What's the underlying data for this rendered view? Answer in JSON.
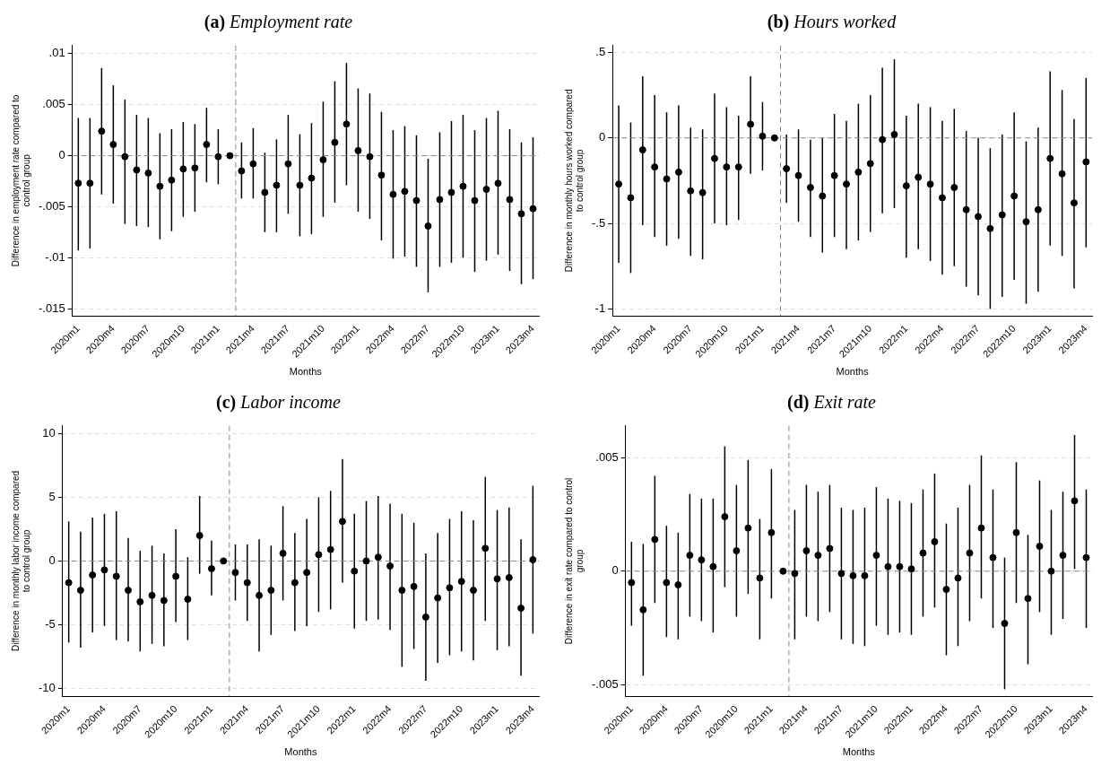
{
  "chart_data": [
    {
      "type": "scatter",
      "title": "(a) Employment rate",
      "xlabel": "Months",
      "ylabel": "Difference in employment rate compared to control group",
      "x": [
        "2020-01",
        "2020-02",
        "2020-03",
        "2020-04",
        "2020-05",
        "2020-06",
        "2020-07",
        "2020-08",
        "2020-09",
        "2020-10",
        "2020-11",
        "2020-12",
        "2021-01",
        "2021-02",
        "2021-03",
        "2021-04",
        "2021-05",
        "2021-06",
        "2021-07",
        "2021-08",
        "2021-09",
        "2021-10",
        "2021-11",
        "2021-12",
        "2022-01",
        "2022-02",
        "2022-03",
        "2022-04",
        "2022-05",
        "2022-06",
        "2022-07",
        "2022-08",
        "2022-09",
        "2022-10",
        "2022-11",
        "2022-12",
        "2023-01",
        "2023-02",
        "2023-03",
        "2023-04"
      ],
      "series": [
        {
          "color": "#000000",
          "values": [
            -0.0027,
            -0.0027,
            0.0024,
            0.0011,
            -0.0001,
            -0.0014,
            -0.0017,
            -0.003,
            -0.0024,
            -0.0013,
            -0.0012,
            0.0011,
            -0.0001,
            0,
            -0.0015,
            -0.0008,
            -0.0036,
            -0.0029,
            -0.0008,
            -0.0029,
            -0.0022,
            -0.0004,
            0.0013,
            0.0031,
            0.0005,
            -0.0001,
            -0.0019,
            -0.0038,
            -0.0035,
            -0.0044,
            -0.0069,
            -0.0043,
            -0.0036,
            -0.003,
            -0.0044,
            -0.0033,
            -0.0027,
            -0.0043,
            -0.0057,
            -0.0052
          ],
          "errors": [
            [
              -0.0093,
              0.0037
            ],
            [
              -0.0091,
              0.0037
            ],
            [
              -0.0038,
              0.0086
            ],
            [
              -0.0047,
              0.0069
            ],
            [
              -0.0067,
              0.0055
            ],
            [
              -0.0069,
              0.004
            ],
            [
              -0.007,
              0.0037
            ],
            [
              -0.0082,
              0.0022
            ],
            [
              -0.0074,
              0.0026
            ],
            [
              -0.006,
              0.0033
            ],
            [
              -0.0055,
              0.0031
            ],
            [
              -0.0026,
              0.0047
            ],
            [
              -0.0028,
              0.0026
            ],
            null,
            [
              -0.0042,
              0.0013
            ],
            [
              -0.0042,
              0.0027
            ],
            [
              -0.0075,
              0.0003
            ],
            [
              -0.0075,
              0.0016
            ],
            [
              -0.0057,
              0.004
            ],
            [
              -0.0079,
              0.0021
            ],
            [
              -0.0077,
              0.0032
            ],
            [
              -0.006,
              0.0053
            ],
            [
              -0.0046,
              0.0073
            ],
            [
              -0.0029,
              0.0091
            ],
            [
              -0.0055,
              0.0066
            ],
            [
              -0.0062,
              0.0061
            ],
            [
              -0.0083,
              0.0043
            ],
            [
              -0.0101,
              0.0025
            ],
            [
              -0.0099,
              0.0029
            ],
            [
              -0.0109,
              0.002
            ],
            [
              -0.0134,
              -0.0003
            ],
            [
              -0.0109,
              0.0023
            ],
            [
              -0.0105,
              0.0034
            ],
            [
              -0.01,
              0.004
            ],
            [
              -0.0114,
              0.0025
            ],
            [
              -0.0103,
              0.0037
            ],
            [
              -0.0097,
              0.0044
            ],
            [
              -0.0113,
              0.0026
            ],
            [
              -0.0126,
              0.0013
            ],
            [
              -0.0121,
              0.0018
            ]
          ]
        }
      ],
      "xlim": [
        "2019-12-16",
        "2023-04-16"
      ],
      "xticks": [
        {
          "value": "2020-01",
          "label": "2020m1"
        },
        {
          "value": "2020-04",
          "label": "2020m4"
        },
        {
          "value": "2020-07",
          "label": "2020m7"
        },
        {
          "value": "2020-10",
          "label": "2020m10"
        },
        {
          "value": "2021-01",
          "label": "2021m1"
        },
        {
          "value": "2021-04",
          "label": "2021m4"
        },
        {
          "value": "2021-07",
          "label": "2021m7"
        },
        {
          "value": "2021-10",
          "label": "2021m10"
        },
        {
          "value": "2022-01",
          "label": "2022m1"
        },
        {
          "value": "2022-04",
          "label": "2022m4"
        },
        {
          "value": "2022-07",
          "label": "2022m7"
        },
        {
          "value": "2022-10",
          "label": "2022m10"
        },
        {
          "value": "2023-01",
          "label": "2023m1"
        },
        {
          "value": "2023-04",
          "label": "2023m4"
        }
      ],
      "ylim": [
        -0.0157,
        0.0108
      ],
      "yticks": [
        {
          "value": -0.015,
          "label": "-.015"
        },
        {
          "value": -0.01,
          "label": "-.01"
        },
        {
          "value": -0.005,
          "label": "-.005"
        },
        0,
        {
          "value": 0.005,
          "label": ".005"
        },
        {
          "value": 0.01,
          "label": ".01"
        }
      ],
      "grid": "y",
      "marker": "circle",
      "ref_lines": [
        {
          "axis": "y",
          "value": 0,
          "line_style": "dashed",
          "color": "#888888"
        },
        {
          "axis": "x",
          "value": "2021-02-15",
          "line_style": "dashed",
          "color": "#888888"
        }
      ]
    },
    {
      "type": "scatter",
      "title": "(b) Hours worked",
      "xlabel": "Months",
      "ylabel": "Difference in monthly hours worked compared to control group",
      "x": [
        "2020-01",
        "2020-02",
        "2020-03",
        "2020-04",
        "2020-05",
        "2020-06",
        "2020-07",
        "2020-08",
        "2020-09",
        "2020-10",
        "2020-11",
        "2020-12",
        "2021-01",
        "2021-02",
        "2021-03",
        "2021-04",
        "2021-05",
        "2021-06",
        "2021-07",
        "2021-08",
        "2021-09",
        "2021-10",
        "2021-11",
        "2021-12",
        "2022-01",
        "2022-02",
        "2022-03",
        "2022-04",
        "2022-05",
        "2022-06",
        "2022-07",
        "2022-08",
        "2022-09",
        "2022-10",
        "2022-11",
        "2022-12",
        "2023-01",
        "2023-02",
        "2023-03",
        "2023-04"
      ],
      "series": [
        {
          "color": "#000000",
          "values": [
            -0.27,
            -0.35,
            -0.07,
            -0.17,
            -0.24,
            -0.2,
            -0.31,
            -0.32,
            -0.12,
            -0.17,
            -0.17,
            0.08,
            0.01,
            0,
            -0.18,
            -0.22,
            -0.29,
            -0.34,
            -0.22,
            -0.27,
            -0.2,
            -0.15,
            -0.01,
            0.02,
            -0.28,
            -0.23,
            -0.27,
            -0.35,
            -0.29,
            -0.42,
            -0.46,
            -0.53,
            -0.45,
            -0.34,
            -0.49,
            -0.42,
            -0.12,
            -0.21,
            -0.38,
            -0.14
          ],
          "errors": [
            [
              -0.73,
              0.19
            ],
            [
              -0.79,
              0.09
            ],
            [
              -0.51,
              0.36
            ],
            [
              -0.58,
              0.25
            ],
            [
              -0.63,
              0.15
            ],
            [
              -0.59,
              0.19
            ],
            [
              -0.69,
              0.06
            ],
            [
              -0.71,
              0.05
            ],
            [
              -0.5,
              0.26
            ],
            [
              -0.51,
              0.18
            ],
            [
              -0.48,
              0.13
            ],
            [
              -0.21,
              0.36
            ],
            [
              -0.19,
              0.21
            ],
            null,
            [
              -0.38,
              0.02
            ],
            [
              -0.49,
              0.05
            ],
            [
              -0.58,
              -0.01
            ],
            [
              -0.67,
              0
            ],
            [
              -0.58,
              0.14
            ],
            [
              -0.65,
              0.1
            ],
            [
              -0.6,
              0.2
            ],
            [
              -0.55,
              0.25
            ],
            [
              -0.44,
              0.41
            ],
            [
              -0.41,
              0.46
            ],
            [
              -0.7,
              0.13
            ],
            [
              -0.65,
              0.2
            ],
            [
              -0.72,
              0.18
            ],
            [
              -0.8,
              0.1
            ],
            [
              -0.75,
              0.17
            ],
            [
              -0.87,
              0.04
            ],
            [
              -0.92,
              0
            ],
            [
              -1.0,
              -0.06
            ],
            [
              -0.93,
              0.02
            ],
            [
              -0.83,
              0.15
            ],
            [
              -0.97,
              -0.02
            ],
            [
              -0.9,
              0.06
            ],
            [
              -0.63,
              0.39
            ],
            [
              -0.69,
              0.28
            ],
            [
              -0.88,
              0.11
            ],
            [
              -0.64,
              0.35
            ]
          ]
        }
      ],
      "xlim": [
        "2019-12-16",
        "2023-04-16"
      ],
      "xticks": [
        {
          "value": "2020-01",
          "label": "2020m1"
        },
        {
          "value": "2020-04",
          "label": "2020m4"
        },
        {
          "value": "2020-07",
          "label": "2020m7"
        },
        {
          "value": "2020-10",
          "label": "2020m10"
        },
        {
          "value": "2021-01",
          "label": "2021m1"
        },
        {
          "value": "2021-04",
          "label": "2021m4"
        },
        {
          "value": "2021-07",
          "label": "2021m7"
        },
        {
          "value": "2021-10",
          "label": "2021m10"
        },
        {
          "value": "2022-01",
          "label": "2022m1"
        },
        {
          "value": "2022-04",
          "label": "2022m4"
        },
        {
          "value": "2022-07",
          "label": "2022m7"
        },
        {
          "value": "2022-10",
          "label": "2022m10"
        },
        {
          "value": "2023-01",
          "label": "2023m1"
        },
        {
          "value": "2023-04",
          "label": "2023m4"
        }
      ],
      "ylim": [
        -1.04,
        0.54
      ],
      "yticks": [
        -1,
        {
          "value": -0.5,
          "label": "-.5"
        },
        0,
        {
          "value": 0.5,
          "label": ".5"
        }
      ],
      "grid": "y",
      "marker": "circle",
      "ref_lines": [
        {
          "axis": "y",
          "value": 0,
          "line_style": "dashed",
          "color": "#888888"
        },
        {
          "axis": "x",
          "value": "2021-02-15",
          "line_style": "dashed",
          "color": "#888888"
        }
      ]
    },
    {
      "type": "scatter",
      "title": "(c) Labor income",
      "xlabel": "Months",
      "ylabel": "Difference in monthly labor income compared to control group",
      "x": [
        "2020-01",
        "2020-02",
        "2020-03",
        "2020-04",
        "2020-05",
        "2020-06",
        "2020-07",
        "2020-08",
        "2020-09",
        "2020-10",
        "2020-11",
        "2020-12",
        "2021-01",
        "2021-02",
        "2021-03",
        "2021-04",
        "2021-05",
        "2021-06",
        "2021-07",
        "2021-08",
        "2021-09",
        "2021-10",
        "2021-11",
        "2021-12",
        "2022-01",
        "2022-02",
        "2022-03",
        "2022-04",
        "2022-05",
        "2022-06",
        "2022-07",
        "2022-08",
        "2022-09",
        "2022-10",
        "2022-11",
        "2022-12",
        "2023-01",
        "2023-02",
        "2023-03",
        "2023-04"
      ],
      "series": [
        {
          "color": "#000000",
          "values": [
            -1.7,
            -2.3,
            -1.1,
            -0.7,
            -1.2,
            -2.3,
            -3.2,
            -2.7,
            -3.1,
            -1.2,
            -3.0,
            2.0,
            -0.6,
            0,
            -0.9,
            -1.7,
            -2.7,
            -2.3,
            0.6,
            -1.7,
            -0.9,
            0.5,
            0.9,
            3.1,
            -0.8,
            0.0,
            0.3,
            -0.4,
            -2.3,
            -2.0,
            -4.4,
            -2.9,
            -2.1,
            -1.6,
            -2.3,
            1.0,
            -1.4,
            -1.3,
            -3.7,
            0.1
          ],
          "errors": [
            [
              -6.4,
              3.1
            ],
            [
              -6.8,
              2.3
            ],
            [
              -5.6,
              3.4
            ],
            [
              -5.1,
              3.7
            ],
            [
              -6.2,
              3.9
            ],
            [
              -6.3,
              1.8
            ],
            [
              -7.1,
              0.8
            ],
            [
              -6.5,
              1.2
            ],
            [
              -6.7,
              0.6
            ],
            [
              -4.8,
              2.5
            ],
            [
              -6.2,
              0.3
            ],
            [
              -1.0,
              5.1
            ],
            [
              -2.7,
              1.6
            ],
            null,
            [
              -3.1,
              1.3
            ],
            [
              -4.7,
              1.3
            ],
            [
              -7.1,
              1.7
            ],
            [
              -5.8,
              1.2
            ],
            [
              -3.1,
              4.3
            ],
            [
              -5.5,
              2.2
            ],
            [
              -5.1,
              3.3
            ],
            [
              -4.0,
              5.0
            ],
            [
              -3.8,
              5.5
            ],
            [
              -1.7,
              8.0
            ],
            [
              -5.3,
              3.7
            ],
            [
              -4.7,
              4.7
            ],
            [
              -4.6,
              5.1
            ],
            [
              -5.4,
              4.5
            ],
            [
              -8.3,
              3.7
            ],
            [
              -6.9,
              3.0
            ],
            [
              -9.4,
              0.6
            ],
            [
              -8.0,
              2.2
            ],
            [
              -7.4,
              3.3
            ],
            [
              -7.1,
              3.9
            ],
            [
              -7.8,
              3.2
            ],
            [
              -4.7,
              6.6
            ],
            [
              -7.0,
              4.0
            ],
            [
              -6.7,
              4.2
            ],
            [
              -9.0,
              1.7
            ],
            [
              -5.7,
              5.9
            ]
          ]
        }
      ],
      "xlim": [
        "2019-12-16",
        "2023-04-16"
      ],
      "xticks": [
        {
          "value": "2020-01",
          "label": "2020m1"
        },
        {
          "value": "2020-04",
          "label": "2020m4"
        },
        {
          "value": "2020-07",
          "label": "2020m7"
        },
        {
          "value": "2020-10",
          "label": "2020m10"
        },
        {
          "value": "2021-01",
          "label": "2021m1"
        },
        {
          "value": "2021-04",
          "label": "2021m4"
        },
        {
          "value": "2021-07",
          "label": "2021m7"
        },
        {
          "value": "2021-10",
          "label": "2021m10"
        },
        {
          "value": "2022-01",
          "label": "2022m1"
        },
        {
          "value": "2022-04",
          "label": "2022m4"
        },
        {
          "value": "2022-07",
          "label": "2022m7"
        },
        {
          "value": "2022-10",
          "label": "2022m10"
        },
        {
          "value": "2023-01",
          "label": "2023m1"
        },
        {
          "value": "2023-04",
          "label": "2023m4"
        }
      ],
      "ylim": [
        -10.6,
        10.6
      ],
      "yticks": [
        -10,
        -5,
        0,
        5,
        10
      ],
      "grid": "y",
      "marker": "circle",
      "ref_lines": [
        {
          "axis": "y",
          "value": 0,
          "line_style": "dashed",
          "color": "#888888"
        },
        {
          "axis": "x",
          "value": "2021-02-15",
          "line_style": "dashed",
          "color": "#888888"
        }
      ]
    },
    {
      "type": "scatter",
      "title": "(d) Exit rate",
      "xlabel": "Months",
      "ylabel": "Difference in exit rate compared to control group",
      "x": [
        "2020-01",
        "2020-02",
        "2020-03",
        "2020-04",
        "2020-05",
        "2020-06",
        "2020-07",
        "2020-08",
        "2020-09",
        "2020-10",
        "2020-11",
        "2020-12",
        "2021-01",
        "2021-02",
        "2021-03",
        "2021-04",
        "2021-05",
        "2021-06",
        "2021-07",
        "2021-08",
        "2021-09",
        "2021-10",
        "2021-11",
        "2021-12",
        "2022-01",
        "2022-02",
        "2022-03",
        "2022-04",
        "2022-05",
        "2022-06",
        "2022-07",
        "2022-08",
        "2022-09",
        "2022-10",
        "2022-11",
        "2022-12",
        "2023-01",
        "2023-02",
        "2023-03",
        "2023-04"
      ],
      "series": [
        {
          "color": "#000000",
          "values": [
            -0.0005,
            -0.0017,
            0.0014,
            -0.0005,
            -0.0006,
            0.0007,
            0.0005,
            0.0002,
            0.0024,
            0.0009,
            0.0019,
            -0.0003,
            0.0017,
            0,
            -0.0001,
            0.0009,
            0.0007,
            0.001,
            -0.0001,
            -0.0002,
            -0.0002,
            0.0007,
            0.0002,
            0.0002,
            0.0001,
            0.0008,
            0.0013,
            -0.0008,
            -0.0003,
            0.0008,
            0.0019,
            0.0006,
            -0.0023,
            0.0017,
            -0.0012,
            0.0011,
            0,
            0.0007,
            0.0031,
            0.0006
          ],
          "errors": [
            [
              -0.0024,
              0.0013
            ],
            [
              -0.0046,
              0.0012
            ],
            [
              -0.0014,
              0.0042
            ],
            [
              -0.0029,
              0.002
            ],
            [
              -0.003,
              0.0017
            ],
            [
              -0.002,
              0.0034
            ],
            [
              -0.0022,
              0.0032
            ],
            [
              -0.0027,
              0.0032
            ],
            [
              -0.0007,
              0.0055
            ],
            [
              -0.002,
              0.0038
            ],
            [
              -0.001,
              0.0049
            ],
            [
              -0.003,
              0.0023
            ],
            [
              -0.0012,
              0.0045
            ],
            null,
            [
              -0.003,
              0.0027
            ],
            [
              -0.002,
              0.0038
            ],
            [
              -0.0022,
              0.0035
            ],
            [
              -0.0018,
              0.0038
            ],
            [
              -0.003,
              0.0028
            ],
            [
              -0.0032,
              0.0027
            ],
            [
              -0.0033,
              0.0028
            ],
            [
              -0.0024,
              0.0037
            ],
            [
              -0.0028,
              0.0032
            ],
            [
              -0.0027,
              0.0031
            ],
            [
              -0.0028,
              0.003
            ],
            [
              -0.002,
              0.0036
            ],
            [
              -0.0016,
              0.0043
            ],
            [
              -0.0037,
              0.0021
            ],
            [
              -0.0033,
              0.0028
            ],
            [
              -0.0022,
              0.0038
            ],
            [
              -0.0012,
              0.0051
            ],
            [
              -0.0025,
              0.0036
            ],
            [
              -0.0052,
              0.0006
            ],
            [
              -0.0014,
              0.0048
            ],
            [
              -0.0041,
              0.0016
            ],
            [
              -0.0018,
              0.004
            ],
            [
              -0.0028,
              0.0027
            ],
            [
              -0.0021,
              0.0035
            ],
            [
              0.0001,
              0.006
            ],
            [
              -0.0025,
              0.0036
            ]
          ]
        }
      ],
      "xlim": [
        "2019-12-16",
        "2023-04-16"
      ],
      "xticks": [
        {
          "value": "2020-01",
          "label": "2020m1"
        },
        {
          "value": "2020-04",
          "label": "2020m4"
        },
        {
          "value": "2020-07",
          "label": "2020m7"
        },
        {
          "value": "2020-10",
          "label": "2020m10"
        },
        {
          "value": "2021-01",
          "label": "2021m1"
        },
        {
          "value": "2021-04",
          "label": "2021m4"
        },
        {
          "value": "2021-07",
          "label": "2021m7"
        },
        {
          "value": "2021-10",
          "label": "2021m10"
        },
        {
          "value": "2022-01",
          "label": "2022m1"
        },
        {
          "value": "2022-04",
          "label": "2022m4"
        },
        {
          "value": "2022-07",
          "label": "2022m7"
        },
        {
          "value": "2022-10",
          "label": "2022m10"
        },
        {
          "value": "2023-01",
          "label": "2023m1"
        },
        {
          "value": "2023-04",
          "label": "2023m4"
        }
      ],
      "ylim": [
        -0.0055,
        0.0064
      ],
      "yticks": [
        {
          "value": -0.005,
          "label": "-.005"
        },
        0,
        {
          "value": 0.005,
          "label": ".005"
        }
      ],
      "grid": "y",
      "marker": "circle",
      "ref_lines": [
        {
          "axis": "y",
          "value": 0,
          "line_style": "dashed",
          "color": "#888888"
        },
        {
          "axis": "x",
          "value": "2021-02-15",
          "line_style": "dashed",
          "color": "#888888"
        }
      ]
    }
  ]
}
